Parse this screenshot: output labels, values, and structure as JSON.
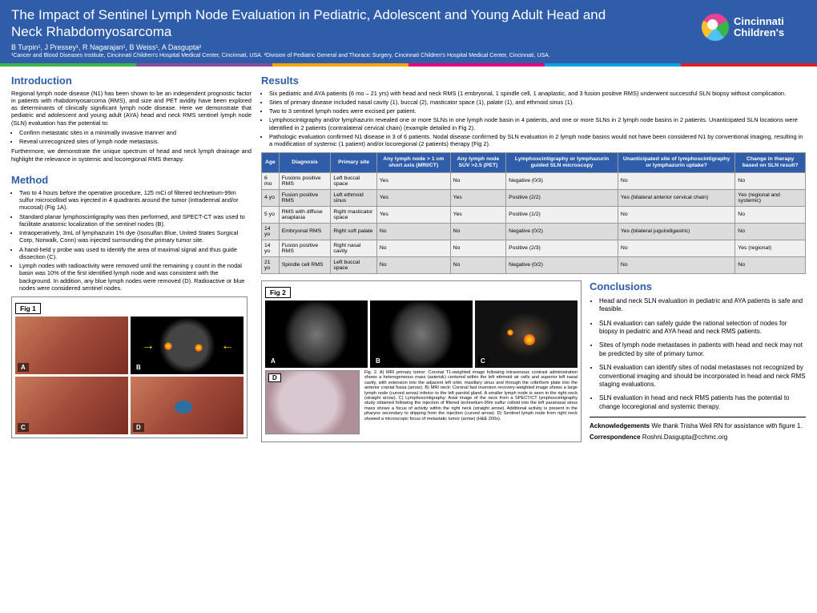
{
  "header": {
    "title": "The Impact of Sentinel Lymph Node Evaluation in Pediatric, Adolescent and Young Adult Head and Neck Rhabdomyosarcoma",
    "authors": "B Turpin¹, J Pressey¹, R Nagarajan¹, B Weiss¹, A Dasgupta²",
    "affil": "¹Cancer and Blood Diseases Institute, Cincinnati Children's Hospital Medical Center, Cincinnati, USA. ²Division of Pediatric General and Thoracic Surgery, Cincinnati Children's Hospital Medical Center, Cincinnati, USA.",
    "logo_line1": "Cincinnati",
    "logo_line2": "Children's"
  },
  "divider_colors": [
    "#3ab54a",
    "#844b9e",
    "#f7a600",
    "#e5007d",
    "#00a4e4",
    "#e31b23"
  ],
  "intro": {
    "title": "Introduction",
    "p1": "Regional lymph node disease (N1) has been shown to be an independent prognostic factor in patients with rhabdomyosarcoma (RMS), and size and PET avidity have been explored as determinants of clinically significant lymph node disease. Here we demonstrate that pediatric and adolescent and young adult (AYA) head and neck RMS sentinel lymph node (SLN) evaluation has the potential to:",
    "b1": "Confirm metastatic sites in a minimally invasive manner and",
    "b2": "Reveal unrecognized sites of lymph node metastasis.",
    "p2": "Furthermore, we demonstrate the unique spectrum of head and neck lymph drainage and highlight the relevance in systemic and locoregional RMS therapy."
  },
  "method": {
    "title": "Method",
    "b1": "Two to 4 hours before the operative procedure, 125 mCi of filtered technetium-99m sulfur microcolloid was injected in 4 quadrants around the tumor (intradermal and/or mucosal) (Fig 1A).",
    "b2": "Standard planar lymphoscintigraphy was then performed, and SPECT-CT was used to facilitate anatomic localization of the sentinel nodes (B).",
    "b3": "Intraoperatively, 3mL of lymphazurin 1% dye (Isosulfan Blue, United States Surgical Corp, Norwalk, Conn) was injected surrounding the primary tumor site.",
    "b4": "A hand-held γ probe was used to identify the area of maximal signal and thus guide dissection (C).",
    "b5": "Lymph nodes with radioactivity were removed until the remaining γ count in the nodal basin was 10% of the first identified lymph node and was consistent with the background. In addition, any blue lymph nodes were removed (D). Radioactive or blue nodes were considered sentinel nodes."
  },
  "results": {
    "title": "Results",
    "b1": "Six pediatric and AYA patients (6 mo – 21 yrs) with head and neck RMS (1 embryonal, 1 spindle cell, 1 anaplastic, and 3 fusion positive RMS) underwent successful SLN biopsy without complication.",
    "b2": "Sites of primary disease included nasal cavity (1), buccal (2), masticator space (1), palate (1), and ethmoid sinus (1).",
    "b3": "Two to 3 sentinel lymph nodes were excised per patient.",
    "b4": "Lymphoscintigraphy and/or lymphazurin revealed one or more SLNs in one lymph node basin in 4 patients, and one or more SLNs in 2 lymph node basins in 2 patients. Unanticipated SLN locations were identified in 2 patients (contralateral cervical chain) (example detailed in Fig 2).",
    "b5": "Pathologic evaluation confirmed N1 disease in 3 of 6 patients. Nodal disease confirmed by SLN evaluation in 2 lymph node basins would not have been considered N1 by conventional imaging, resulting in a modification of systemic (1 patient) and/or locoregional (2 patients) therapy (Fig 2)."
  },
  "table": {
    "columns": [
      "Age",
      "Diagnosis",
      "Primary site",
      "Any lymph node > 1 cm short axis (MRI/CT)",
      "Any lymph node SUV >2.5 (PET)",
      "Lymphoscintigraphy or lymphazurin guided SLN microscopy",
      "Unanticipated site of lymphoscintigraphy or lymphazurin uptake?",
      "Change in therapy based on SLN result?"
    ],
    "rows": [
      [
        "6 mo",
        "Fusions positive RMS",
        "Left buccal space",
        "Yes",
        "No",
        "Negative (0/3)",
        "No",
        "No"
      ],
      [
        "4 yo",
        "Fusion positive RMS",
        "Left ethmoid sinus",
        "Yes",
        "Yes",
        "Positive (2/2)",
        "Yes (bilateral anterior cervical chain)",
        "Yes (regional and systemic)"
      ],
      [
        "5 yo",
        "RMS with diffuse anaplasia",
        "Right masticator space",
        "Yes",
        "Yes",
        "Positive (1/2)",
        "No",
        "No"
      ],
      [
        "14 yo",
        "Embryonal RMS",
        "Right soft palate",
        "No",
        "No",
        "Negative (0/2)",
        "Yes (bilateral jugulodigastric)",
        "No"
      ],
      [
        "14 yo",
        "Fusion positive RMS",
        "Right nasal cavity",
        "No",
        "No",
        "Positive (2/3)",
        "No",
        "Yes (regional)"
      ],
      [
        "21 yo",
        "Spindle cell RMS",
        "Left buccal space",
        "No",
        "No",
        "Negative (0/2)",
        "No",
        "No"
      ]
    ]
  },
  "fig1": {
    "label": "Fig 1",
    "a": "A",
    "b": "B",
    "c": "C",
    "d": "D"
  },
  "fig2": {
    "label": "Fig 2",
    "a": "A",
    "b": "B",
    "c": "C",
    "d": "D",
    "caption": "Fig. 2. A) MRI primary tumor: Coronal T1-weighted image following intravenous contrast administration shows a heterogeneous mass (asterisk) centered within the left ethmoid air cells and superior left nasal cavity, with extension into the adjacent left orbit, maxillary sinus and through the cribriform plate into the anterior cranial fossa (arrow). B) MRI neck: Coronal fast inversion recovery-weighted image shows a large lymph node (curved arrow) inferior to the left parotid gland. A smaller lymph node is seen in the right neck (straight arrow). C) Lymphoscintigraphy: Axial image of the neck from a SPECT/CT lymphoscintigraphy study obtained following the injection of filtered technetium-99m sulfur colloid into the left paranasal sinus mass shows a focus of activity within the right neck (straight arrow). Additional activity is present in the pharynx secondary to dripping from the injection (curved arrow). D) Sentinel lymph node from right neck showed a microscopic focus of metastatic tumor (arrow) (H&E 200x)."
  },
  "conc": {
    "title": "Conclusions",
    "b1": "Head and neck SLN evaluation in pediatric and AYA patients is safe and feasible.",
    "b2": "SLN evaluation can safely guide the rational selection of nodes for biopsy in pediatric and AYA head and neck RMS patients.",
    "b3": "Sites of lymph node metastases in patients with head and neck may not be predicted by site of primary tumor.",
    "b4": "SLN evaluation can identify sites of nodal metastases not recognized by conventional imaging and should be incorporated in head and neck RMS staging evaluations.",
    "b5": "SLN evaluation in head and neck RMS patients has the potential to change locoregional and systemic therapy."
  },
  "ack": {
    "label": "Acknowledgements",
    "text": " We thank Trisha Weil RN for assistance with figure 1."
  },
  "corr": {
    "label": "Correspondence",
    "text": " Roshni.Dasgupta@cchmc.org"
  }
}
